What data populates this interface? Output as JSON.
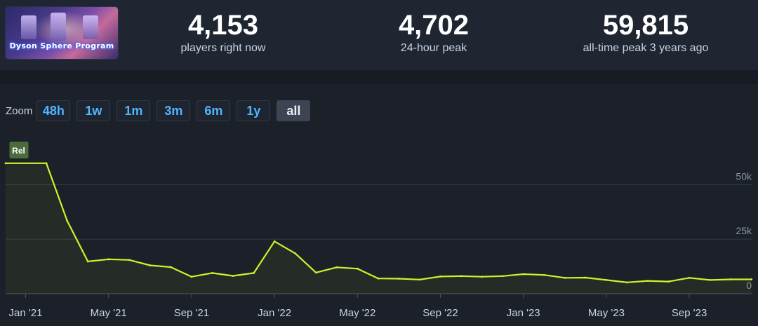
{
  "game": {
    "title": "Dyson Sphere Program"
  },
  "stats": [
    {
      "value": "4,153",
      "label": "players right now"
    },
    {
      "value": "4,702",
      "label": "24-hour peak"
    },
    {
      "value": "59,815",
      "label": "all-time peak 3 years ago"
    }
  ],
  "zoom": {
    "label": "Zoom",
    "options": [
      "48h",
      "1w",
      "1m",
      "3m",
      "6m",
      "1y",
      "all"
    ],
    "selected": "all"
  },
  "colors": {
    "line": "#d2f02a",
    "zoom_text": "#4fb5ff",
    "background": "#1b2029"
  },
  "chart_data": {
    "type": "line",
    "x_labels": [
      "Jan '21",
      "May '21",
      "Sep '21",
      "Jan '22",
      "May '22",
      "Sep '22",
      "Jan '23",
      "May '23",
      "Sep '23"
    ],
    "y_ticks": [
      0,
      25000,
      50000
    ],
    "y_tick_labels": [
      "0",
      "25k",
      "50k"
    ],
    "ylim": [
      0,
      62000
    ],
    "annotation": {
      "label": "Rel",
      "x": "2021-01"
    },
    "grid": true,
    "series": [
      {
        "points": [
          [
            "2021-01-01",
            59800
          ],
          [
            "2021-02-01",
            59815
          ],
          [
            "2021-03-01",
            33500
          ],
          [
            "2021-04-01",
            14800
          ],
          [
            "2021-05-01",
            15800
          ],
          [
            "2021-06-01",
            15500
          ],
          [
            "2021-07-01",
            13000
          ],
          [
            "2021-08-01",
            12200
          ],
          [
            "2021-09-01",
            7800
          ],
          [
            "2021-10-01",
            9500
          ],
          [
            "2021-11-01",
            8200
          ],
          [
            "2021-12-01",
            9500
          ],
          [
            "2022-01-01",
            24000
          ],
          [
            "2022-02-01",
            18500
          ],
          [
            "2022-03-01",
            9700
          ],
          [
            "2022-04-01",
            12100
          ],
          [
            "2022-05-01",
            11500
          ],
          [
            "2022-06-01",
            7000
          ],
          [
            "2022-07-01",
            6900
          ],
          [
            "2022-08-01",
            6500
          ],
          [
            "2022-09-01",
            7900
          ],
          [
            "2022-10-01",
            8100
          ],
          [
            "2022-11-01",
            7800
          ],
          [
            "2022-12-01",
            8100
          ],
          [
            "2023-01-01",
            9000
          ],
          [
            "2023-02-01",
            8600
          ],
          [
            "2023-03-01",
            7300
          ],
          [
            "2023-04-01",
            7400
          ],
          [
            "2023-05-01",
            6300
          ],
          [
            "2023-06-01",
            5200
          ],
          [
            "2023-07-01",
            5900
          ],
          [
            "2023-08-01",
            5600
          ],
          [
            "2023-09-01",
            7300
          ],
          [
            "2023-10-01",
            6300
          ],
          [
            "2023-11-01",
            6600
          ],
          [
            "2023-12-01",
            6600
          ]
        ]
      }
    ]
  }
}
